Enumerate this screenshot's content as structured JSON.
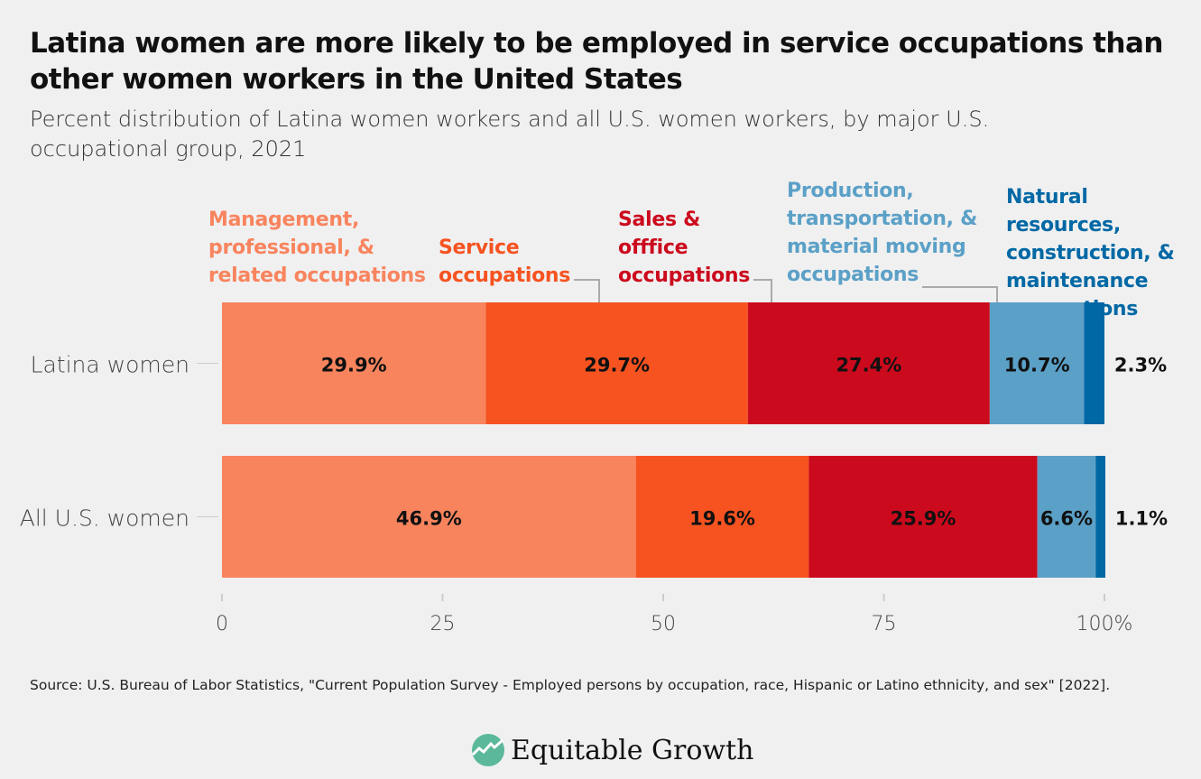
{
  "chart_data": {
    "type": "bar",
    "orientation": "horizontal",
    "stacked": true,
    "title": "Latina women are more likely to be employed in service occupations than other women workers in the United States",
    "subtitle": "Percent distribution of Latina women workers and all U.S. women workers, by major U.S. occupational group, 2021",
    "categories": [
      "Latina women",
      "All U.S. women"
    ],
    "series": [
      {
        "name": "Management, professional, & related occupations",
        "color": "#f8845e",
        "values": [
          29.9,
          46.9
        ],
        "labels": [
          "29.9%",
          "46.9%"
        ]
      },
      {
        "name": "Service occupations",
        "color": "#f65321",
        "values": [
          29.7,
          19.6
        ],
        "labels": [
          "29.7%",
          "19.6%"
        ]
      },
      {
        "name": "Sales & offfice occupations",
        "color": "#cc0a1d",
        "values": [
          27.4,
          25.9
        ],
        "labels": [
          "27.4%",
          "25.9%"
        ]
      },
      {
        "name": "Production, transportation, & material moving occupations",
        "color": "#5ba0c7",
        "values": [
          10.7,
          6.6
        ],
        "labels": [
          "10.7%",
          "6.6%"
        ]
      },
      {
        "name": "Natural resources, construction, & maintenance occupations",
        "color": "#0068a5",
        "values": [
          2.3,
          1.1
        ],
        "labels": [
          "2.3%",
          "1.1%"
        ]
      }
    ],
    "xlim": [
      0,
      100
    ],
    "xticks": [
      "0",
      "25",
      "50",
      "75",
      "100%"
    ],
    "legend": "top, direct labels",
    "source": "Source: U.S. Bureau of Labor Statistics, \"Current Population Survey - Employed persons by occupation, race, Hispanic or Latino ethnicity, and sex\" [2022].",
    "logo": "Equitable Growth"
  }
}
